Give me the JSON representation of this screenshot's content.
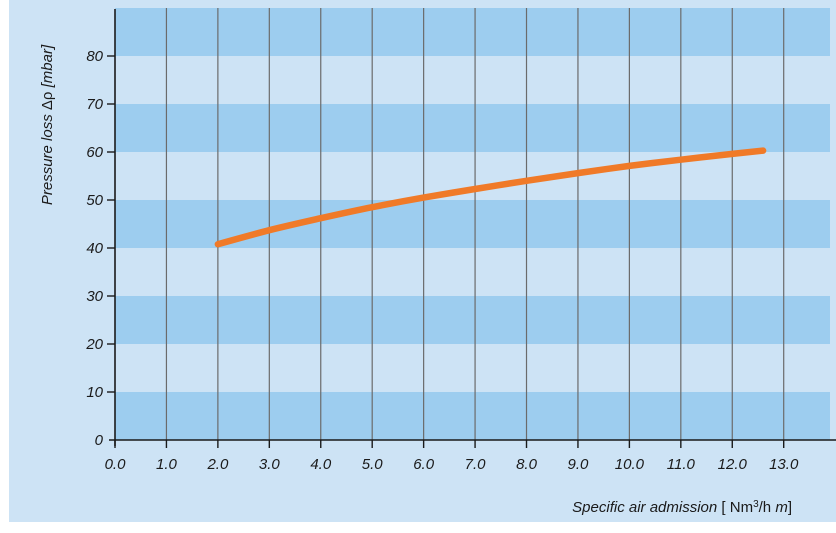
{
  "colors": {
    "frame_bg": "#cde3f5",
    "band_dark": "#9dcdef",
    "band_light": "#cde3f5",
    "grid": "#6b6b6b",
    "axis": "#1a1a1a",
    "curve": "#f07a28"
  },
  "chart_data": {
    "type": "line",
    "title": "",
    "xlabel": {
      "italic_part": "Specific air admission",
      "open_bracket": " [ ",
      "unit_prefix": "Nm",
      "unit_sup": "3",
      "unit_mid": "/h ",
      "unit_italic": "m",
      "close_bracket": "]"
    },
    "ylabel": {
      "italic_part": "Pressure loss ",
      "symbol": "Δρ",
      "unit": " [mbar]"
    },
    "xlim": [
      0,
      13.9
    ],
    "ylim": [
      0,
      90
    ],
    "x_ticks": [
      "0.0",
      "1.0",
      "2.0",
      "3.0",
      "4.0",
      "5.0",
      "6.0",
      "7.0",
      "8.0",
      "9.0",
      "10.0",
      "11.0",
      "12.0",
      "13.0"
    ],
    "y_ticks": [
      "0",
      "10",
      "20",
      "30",
      "40",
      "50",
      "60",
      "70",
      "80"
    ],
    "grid": true,
    "horizontal_bands": true,
    "series": [
      {
        "x": [
          2.0,
          3.0,
          4.0,
          5.0,
          6.0,
          7.0,
          8.0,
          9.0,
          10.0,
          11.0,
          12.0,
          12.6
        ],
        "y": [
          40.8,
          43.7,
          46.2,
          48.5,
          50.5,
          52.3,
          54.0,
          55.6,
          57.1,
          58.4,
          59.6,
          60.3
        ]
      }
    ]
  }
}
